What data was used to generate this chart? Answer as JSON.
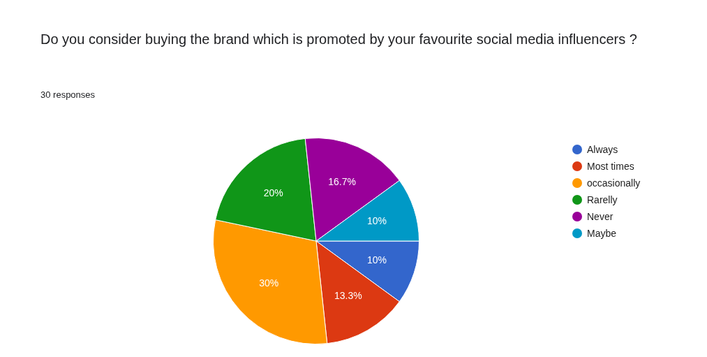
{
  "chart_data": {
    "type": "pie",
    "title": "Do you consider buying the brand which is  promoted by your favourite social media influencers ?",
    "subtitle": "30 responses",
    "categories": [
      "Always",
      "Most times",
      "occasionally",
      "Rarelly",
      "Never",
      "Maybe"
    ],
    "values": [
      10,
      13.3,
      30,
      20,
      16.7,
      10
    ],
    "colors": [
      "#3366cc",
      "#dc3912",
      "#ff9900",
      "#109618",
      "#990099",
      "#0099c6"
    ],
    "value_labels": [
      "10%",
      "13.3%",
      "30%",
      "20%",
      "16.7%",
      "10%"
    ],
    "legend": "top right"
  }
}
